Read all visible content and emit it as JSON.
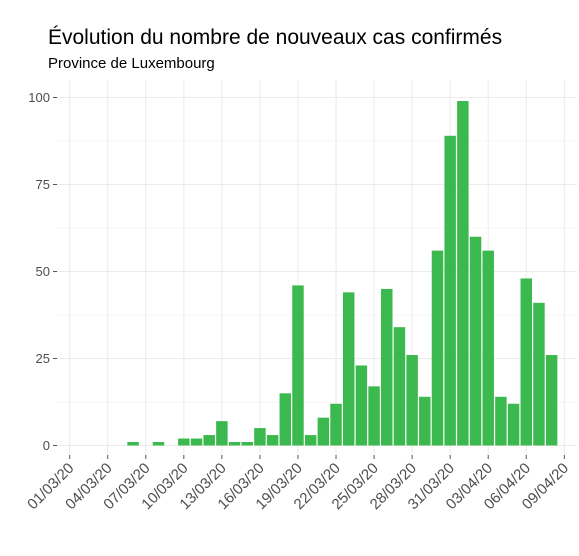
{
  "chart_data": {
    "type": "bar",
    "title": "Évolution du nombre de nouveaux cas confirmés",
    "subtitle": "Province de Luxembourg",
    "xlabel": "",
    "ylabel": "",
    "ylim": [
      0,
      100
    ],
    "xlim": [
      "2020-02-29",
      "2020-04-10"
    ],
    "y_ticks": [
      0,
      25,
      50,
      75,
      100
    ],
    "y_tick_labels": [
      "0",
      "25",
      "50",
      "75",
      "100"
    ],
    "x_ticks": [
      "2020-03-01",
      "2020-03-04",
      "2020-03-07",
      "2020-03-10",
      "2020-03-13",
      "2020-03-16",
      "2020-03-19",
      "2020-03-22",
      "2020-03-25",
      "2020-03-28",
      "2020-03-31",
      "2020-04-03",
      "2020-04-06",
      "2020-04-09"
    ],
    "x_tick_labels": [
      "01/03/20",
      "04/03/20",
      "07/03/20",
      "10/03/20",
      "13/03/20",
      "16/03/20",
      "19/03/20",
      "22/03/20",
      "25/03/20",
      "28/03/20",
      "31/03/20",
      "03/04/20",
      "06/04/20",
      "09/04/20"
    ],
    "bar_color": "#3cb94e",
    "grid": true,
    "dates": [
      "2020-03-06",
      "2020-03-08",
      "2020-03-10",
      "2020-03-11",
      "2020-03-12",
      "2020-03-13",
      "2020-03-14",
      "2020-03-15",
      "2020-03-16",
      "2020-03-17",
      "2020-03-18",
      "2020-03-19",
      "2020-03-20",
      "2020-03-21",
      "2020-03-22",
      "2020-03-23",
      "2020-03-24",
      "2020-03-25",
      "2020-03-26",
      "2020-03-27",
      "2020-03-28",
      "2020-03-29",
      "2020-03-30",
      "2020-03-31",
      "2020-04-01",
      "2020-04-02",
      "2020-04-03",
      "2020-04-04",
      "2020-04-05",
      "2020-04-06",
      "2020-04-07",
      "2020-04-08"
    ],
    "values": [
      1,
      1,
      2,
      2,
      3,
      7,
      1,
      1,
      5,
      3,
      15,
      46,
      3,
      8,
      12,
      44,
      23,
      17,
      45,
      34,
      26,
      14,
      56,
      89,
      99,
      60,
      56,
      14,
      12,
      48,
      41,
      26
    ]
  }
}
